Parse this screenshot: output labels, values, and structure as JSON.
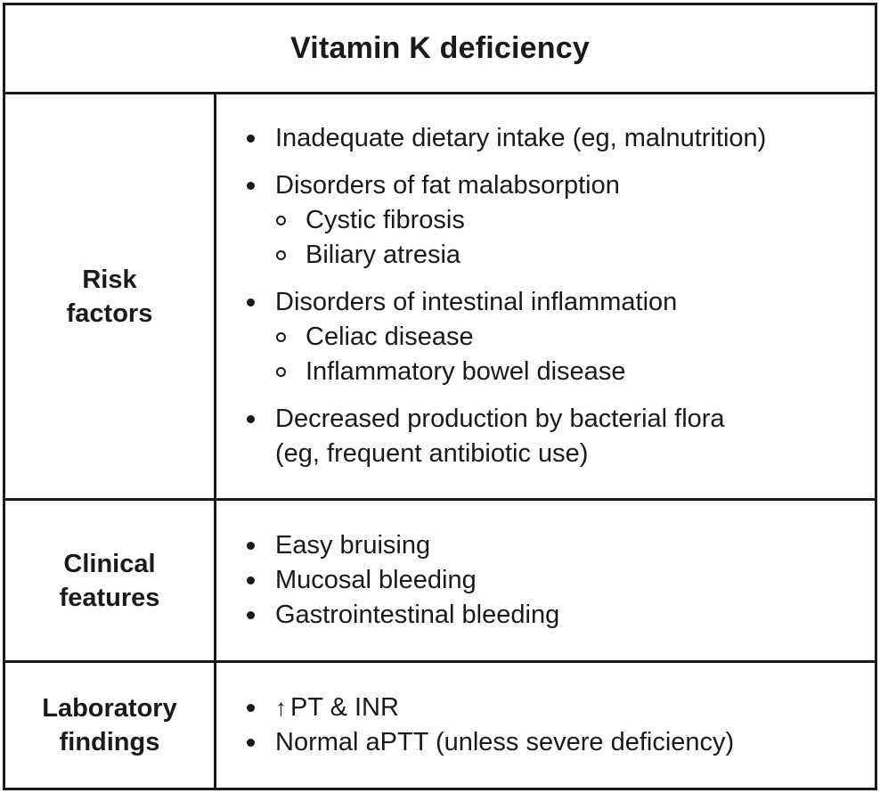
{
  "title": "Vitamin K deficiency",
  "rows": {
    "risk": {
      "label_line1": "Risk",
      "label_line2": "factors",
      "items": [
        {
          "text": "Inadequate dietary intake (eg, malnutrition)"
        },
        {
          "text": "Disorders of fat malabsorption",
          "sub": [
            "Cystic fibrosis",
            "Biliary atresia"
          ]
        },
        {
          "text": "Disorders of intestinal inflammation",
          "sub": [
            "Celiac disease",
            "Inflammatory bowel disease"
          ]
        },
        {
          "text": "Decreased production by bacterial flora",
          "text2": "(eg, frequent antibiotic use)"
        }
      ]
    },
    "clinical": {
      "label_line1": "Clinical",
      "label_line2": "features",
      "items": [
        "Easy bruising",
        "Mucosal bleeding",
        "Gastrointestinal bleeding"
      ]
    },
    "lab": {
      "label_line1": "Laboratory",
      "label_line2": "findings",
      "arrow": "↑",
      "items": [
        "PT & INR",
        "Normal aPTT (unless severe deficiency)"
      ]
    }
  }
}
